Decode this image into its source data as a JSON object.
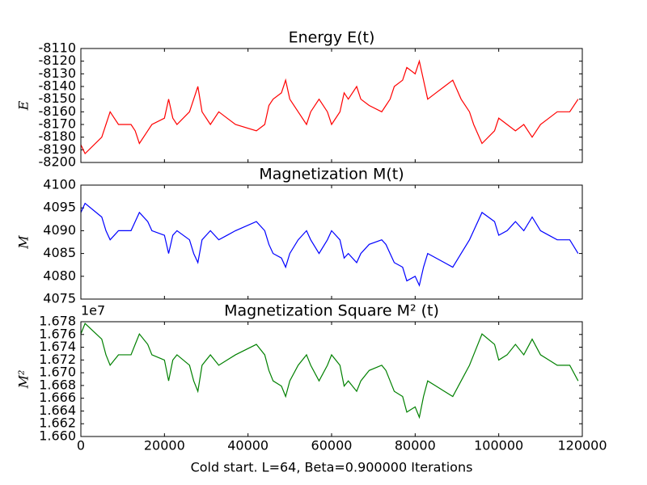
{
  "chart_data": [
    {
      "type": "line",
      "title": "Energy E(t)",
      "ylabel": "E",
      "x": [
        0,
        1000,
        5000,
        6000,
        7000,
        8000,
        9000,
        12000,
        13000,
        14000,
        16000,
        17000,
        20000,
        21000,
        22000,
        23000,
        26000,
        27000,
        28000,
        29000,
        31000,
        33000,
        35000,
        37000,
        42000,
        44000,
        45000,
        46000,
        48000,
        49000,
        50000,
        52000,
        54000,
        55000,
        57000,
        59000,
        60000,
        62000,
        63000,
        64000,
        66000,
        67000,
        69000,
        72000,
        73000,
        74000,
        75000,
        77000,
        78000,
        80000,
        81000,
        82000,
        83000,
        85000,
        87000,
        89000,
        91000,
        93000,
        94000,
        96000,
        99000,
        100000,
        102000,
        104000,
        106000,
        108000,
        110000,
        112000,
        114000,
        117000,
        119000
      ],
      "series": [
        {
          "name": "E",
          "color": "#ff0000",
          "values": [
            -8186,
            -8193,
            -8180,
            -8170,
            -8160,
            -8165,
            -8170,
            -8170,
            -8175,
            -8185,
            -8175,
            -8170,
            -8165,
            -8150,
            -8165,
            -8170,
            -8160,
            -8150,
            -8140,
            -8160,
            -8170,
            -8160,
            -8165,
            -8170,
            -8175,
            -8170,
            -8155,
            -8150,
            -8145,
            -8135,
            -8150,
            -8160,
            -8170,
            -8160,
            -8150,
            -8160,
            -8170,
            -8160,
            -8145,
            -8150,
            -8140,
            -8150,
            -8155,
            -8160,
            -8155,
            -8150,
            -8140,
            -8135,
            -8125,
            -8130,
            -8120,
            -8135,
            -8150,
            -8145,
            -8140,
            -8135,
            -8150,
            -8160,
            -8170,
            -8185,
            -8175,
            -8165,
            -8170,
            -8175,
            -8170,
            -8180,
            -8170,
            -8165,
            -8160,
            -8160,
            -8150
          ]
        }
      ],
      "xlim": [
        0,
        120000
      ],
      "xticks": [
        0,
        20000,
        40000,
        60000,
        80000,
        100000,
        120000
      ],
      "ylim": [
        -8200,
        -8110
      ],
      "yticks": [
        -8200,
        -8190,
        -8180,
        -8170,
        -8160,
        -8150,
        -8140,
        -8130,
        -8120,
        -8110
      ]
    },
    {
      "type": "line",
      "title": "Magnetization  M(t)",
      "ylabel": "M",
      "x": [
        0,
        1000,
        5000,
        6000,
        7000,
        8000,
        9000,
        12000,
        13000,
        14000,
        16000,
        17000,
        20000,
        21000,
        22000,
        23000,
        26000,
        27000,
        28000,
        29000,
        31000,
        33000,
        35000,
        37000,
        42000,
        44000,
        45000,
        46000,
        48000,
        49000,
        50000,
        52000,
        54000,
        55000,
        57000,
        59000,
        60000,
        62000,
        63000,
        64000,
        66000,
        67000,
        69000,
        72000,
        73000,
        74000,
        75000,
        77000,
        78000,
        80000,
        81000,
        82000,
        83000,
        85000,
        87000,
        89000,
        91000,
        93000,
        94000,
        96000,
        99000,
        100000,
        102000,
        104000,
        106000,
        108000,
        110000,
        112000,
        114000,
        117000,
        119000
      ],
      "series": [
        {
          "name": "M",
          "color": "#0000ff",
          "values": [
            4094,
            4096,
            4093,
            4090,
            4088,
            4089,
            4090,
            4090,
            4092,
            4094,
            4092,
            4090,
            4089,
            4085,
            4089,
            4090,
            4088,
            4085,
            4083,
            4088,
            4090,
            4088,
            4089,
            4090,
            4092,
            4090,
            4087,
            4085,
            4084,
            4082,
            4085,
            4088,
            4090,
            4088,
            4085,
            4088,
            4090,
            4088,
            4084,
            4085,
            4083,
            4085,
            4087,
            4088,
            4087,
            4085,
            4083,
            4082,
            4079,
            4080,
            4078,
            4082,
            4085,
            4084,
            4083,
            4082,
            4085,
            4088,
            4090,
            4094,
            4092,
            4089,
            4090,
            4092,
            4090,
            4093,
            4090,
            4089,
            4088,
            4088,
            4085
          ]
        }
      ],
      "xlim": [
        0,
        120000
      ],
      "xticks": [
        0,
        20000,
        40000,
        60000,
        80000,
        100000,
        120000
      ],
      "ylim": [
        4075,
        4100
      ],
      "yticks": [
        4075,
        4080,
        4085,
        4090,
        4095,
        4100
      ]
    },
    {
      "type": "line",
      "title": "Magnetization Square  M² (t)",
      "ylabel": "M²",
      "offset_text": "1e7",
      "xlabel": "Cold start. L=64, Beta=0.900000 Iterations",
      "x": [
        0,
        1000,
        5000,
        6000,
        7000,
        8000,
        9000,
        12000,
        13000,
        14000,
        16000,
        17000,
        20000,
        21000,
        22000,
        23000,
        26000,
        27000,
        28000,
        29000,
        31000,
        33000,
        35000,
        37000,
        42000,
        44000,
        45000,
        46000,
        48000,
        49000,
        50000,
        52000,
        54000,
        55000,
        57000,
        59000,
        60000,
        62000,
        63000,
        64000,
        66000,
        67000,
        69000,
        72000,
        73000,
        74000,
        75000,
        77000,
        78000,
        80000,
        81000,
        82000,
        83000,
        85000,
        87000,
        89000,
        91000,
        93000,
        94000,
        96000,
        99000,
        100000,
        102000,
        104000,
        106000,
        108000,
        110000,
        112000,
        114000,
        117000,
        119000
      ],
      "series": [
        {
          "name": "M²",
          "color": "#008000",
          "values": [
            16760836,
            16777216,
            16752649,
            16728100,
            16711744,
            16719921,
            16728100,
            16728100,
            16744464,
            16760836,
            16744464,
            16728100,
            16719921,
            16687225,
            16719921,
            16728100,
            16711744,
            16687225,
            16670889,
            16711744,
            16728100,
            16711744,
            16719921,
            16728100,
            16744464,
            16728100,
            16703569,
            16687225,
            16679056,
            16662724,
            16687225,
            16711744,
            16728100,
            16711744,
            16687225,
            16711744,
            16728100,
            16711744,
            16679056,
            16687225,
            16670889,
            16687225,
            16703569,
            16711744,
            16703569,
            16687225,
            16670889,
            16662724,
            16638241,
            16646400,
            16630084,
            16662724,
            16687225,
            16679056,
            16670889,
            16662724,
            16687225,
            16711744,
            16728100,
            16760836,
            16744464,
            16719921,
            16728100,
            16744464,
            16728100,
            16752649,
            16728100,
            16719921,
            16711744,
            16711744,
            16687225
          ]
        }
      ],
      "xlim": [
        0,
        120000
      ],
      "xticks": [
        0,
        20000,
        40000,
        60000,
        80000,
        100000,
        120000
      ],
      "ylim": [
        16600000,
        16780000
      ],
      "yticks": [
        {
          "value": 16600000,
          "label": "1.660"
        },
        {
          "value": 16620000,
          "label": "1.662"
        },
        {
          "value": 16640000,
          "label": "1.664"
        },
        {
          "value": 16660000,
          "label": "1.666"
        },
        {
          "value": 16680000,
          "label": "1.668"
        },
        {
          "value": 16700000,
          "label": "1.670"
        },
        {
          "value": 16720000,
          "label": "1.672"
        },
        {
          "value": 16740000,
          "label": "1.674"
        },
        {
          "value": 16760000,
          "label": "1.676"
        },
        {
          "value": 16780000,
          "label": "1.678"
        }
      ]
    }
  ]
}
